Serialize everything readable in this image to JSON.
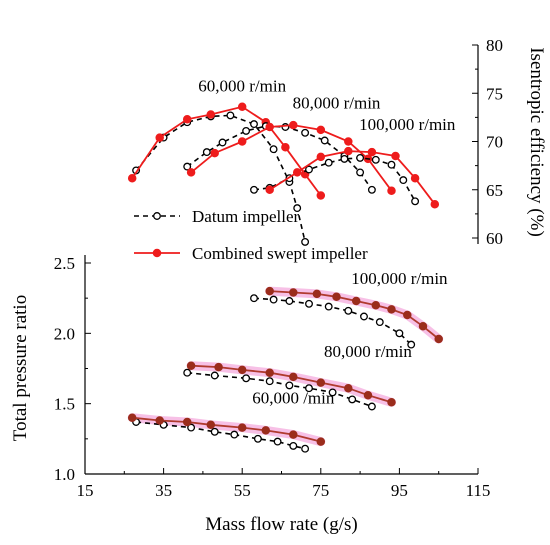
{
  "chart_data": {
    "type": "line",
    "xlabel": "Mass flow rate (g/s)",
    "ylabel_left": "Total pressure ratio",
    "ylabel_right": "Isentropic efficiency (%)",
    "xlim": [
      15,
      115
    ],
    "x_ticks": [
      "15",
      "35",
      "55",
      "75",
      "95",
      "115"
    ],
    "ylim_left": [
      1.0,
      2.5
    ],
    "y_ticks_left": [
      "1.0",
      "1.5",
      "2.0",
      "2.5"
    ],
    "ylim_right": [
      60,
      80
    ],
    "y_ticks_right": [
      "60",
      "65",
      "70",
      "75",
      "80"
    ],
    "legend": [
      {
        "name": "Datum impeller",
        "color": "#000000",
        "style": "dashed-open"
      },
      {
        "name": "Combined swept impeller",
        "color": "#ee1c1c",
        "style": "solid-filled"
      }
    ],
    "annotations": [
      {
        "text": "60,000 r/min",
        "x": 55,
        "y": 75.2,
        "axis": "right"
      },
      {
        "text": "80,000 r/min",
        "x": 79,
        "y": 73.4,
        "axis": "right"
      },
      {
        "text": "100,000 r/min",
        "x": 97,
        "y": 71.2,
        "axis": "right"
      },
      {
        "text": "100,000 r/min",
        "x": 95,
        "y": 2.35,
        "axis": "left"
      },
      {
        "text": "80,000 r/min",
        "x": 87,
        "y": 1.83,
        "axis": "left"
      },
      {
        "text": "60,000 /min",
        "x": 68,
        "y": 1.5,
        "axis": "left"
      }
    ],
    "efficiency_series": [
      {
        "name": "Datum impeller",
        "speed": "60,000 r/min",
        "x": [
          28,
          35,
          41,
          47,
          52,
          58,
          63,
          67,
          69,
          71
        ],
        "y": [
          67.0,
          70.4,
          72.0,
          72.6,
          72.7,
          71.8,
          69.2,
          65.8,
          63.1,
          59.6
        ]
      },
      {
        "name": "Combined swept impeller",
        "speed": "60,000 r/min",
        "x": [
          27,
          34,
          41,
          47,
          55,
          61,
          66,
          71,
          75
        ],
        "y": [
          66.2,
          70.4,
          72.3,
          72.8,
          73.6,
          72.0,
          69.4,
          66.6,
          64.4
        ]
      },
      {
        "name": "Datum impeller",
        "speed": "80,000 r/min",
        "x": [
          41,
          46,
          50,
          56,
          61,
          66,
          71,
          76,
          81,
          85,
          88
        ],
        "y": [
          67.4,
          68.9,
          69.9,
          71.1,
          71.6,
          71.5,
          70.9,
          70.1,
          68.5,
          66.8,
          65.0
        ]
      },
      {
        "name": "Combined swept impeller",
        "speed": "80,000 r/min",
        "x": [
          42,
          48,
          55,
          62,
          68,
          75,
          82,
          87,
          93
        ],
        "y": [
          66.8,
          68.8,
          70.0,
          71.5,
          71.7,
          71.2,
          70.0,
          68.2,
          64.9
        ]
      },
      {
        "name": "Datum impeller",
        "speed": "100,000 r/min",
        "x": [
          58,
          62,
          67,
          72,
          77,
          81,
          85,
          89,
          93,
          96,
          99
        ],
        "y": [
          65.0,
          65.2,
          66.2,
          67.1,
          67.8,
          68.2,
          68.3,
          68.1,
          67.6,
          66.0,
          63.8
        ]
      },
      {
        "name": "Combined swept impeller",
        "speed": "100,000 r/min",
        "x": [
          62,
          69,
          75,
          82,
          88,
          94,
          99,
          104
        ],
        "y": [
          65.0,
          66.8,
          68.4,
          69.0,
          68.9,
          68.5,
          66.2,
          63.5
        ]
      }
    ],
    "pressure_series": [
      {
        "name": "Datum impeller",
        "speed": "60,000 r/min",
        "x": [
          28,
          35,
          42,
          48,
          53,
          59,
          64,
          68,
          71
        ],
        "y": [
          1.37,
          1.35,
          1.33,
          1.3,
          1.28,
          1.25,
          1.23,
          1.2,
          1.18
        ]
      },
      {
        "name": "Combined swept impeller",
        "speed": "60,000 r/min",
        "x": [
          27,
          34,
          41,
          47,
          55,
          61,
          68,
          75
        ],
        "y": [
          1.4,
          1.38,
          1.37,
          1.35,
          1.33,
          1.31,
          1.28,
          1.23
        ]
      },
      {
        "name": "Datum impeller",
        "speed": "80,000 r/min",
        "x": [
          41,
          48,
          56,
          62,
          67,
          72,
          78,
          83,
          88
        ],
        "y": [
          1.72,
          1.7,
          1.68,
          1.66,
          1.63,
          1.61,
          1.58,
          1.53,
          1.48
        ]
      },
      {
        "name": "Combined swept impeller",
        "speed": "80,000 r/min",
        "x": [
          42,
          49,
          55,
          62,
          68,
          75,
          82,
          87,
          93
        ],
        "y": [
          1.77,
          1.76,
          1.74,
          1.72,
          1.69,
          1.65,
          1.61,
          1.56,
          1.51
        ]
      },
      {
        "name": "Datum impeller",
        "speed": "100,000 r/min",
        "x": [
          58,
          63,
          67,
          72,
          77,
          82,
          86,
          90,
          95,
          98
        ],
        "y": [
          2.25,
          2.24,
          2.23,
          2.21,
          2.19,
          2.16,
          2.12,
          2.08,
          2.0,
          1.92
        ]
      },
      {
        "name": "Combined swept impeller",
        "speed": "100,000 r/min",
        "x": [
          62,
          68,
          74,
          79,
          84,
          89,
          93,
          97,
          101,
          105
        ],
        "y": [
          2.3,
          2.29,
          2.28,
          2.26,
          2.23,
          2.2,
          2.17,
          2.13,
          2.05,
          1.96
        ]
      }
    ],
    "colors": {
      "datum": "#000000",
      "swept_efficiency": "#ee1c1c",
      "swept_pressure_line": "#b03a2e",
      "swept_pressure_marker": "#9b2d1c",
      "swept_pressure_glow": "#f5b0e0"
    }
  }
}
